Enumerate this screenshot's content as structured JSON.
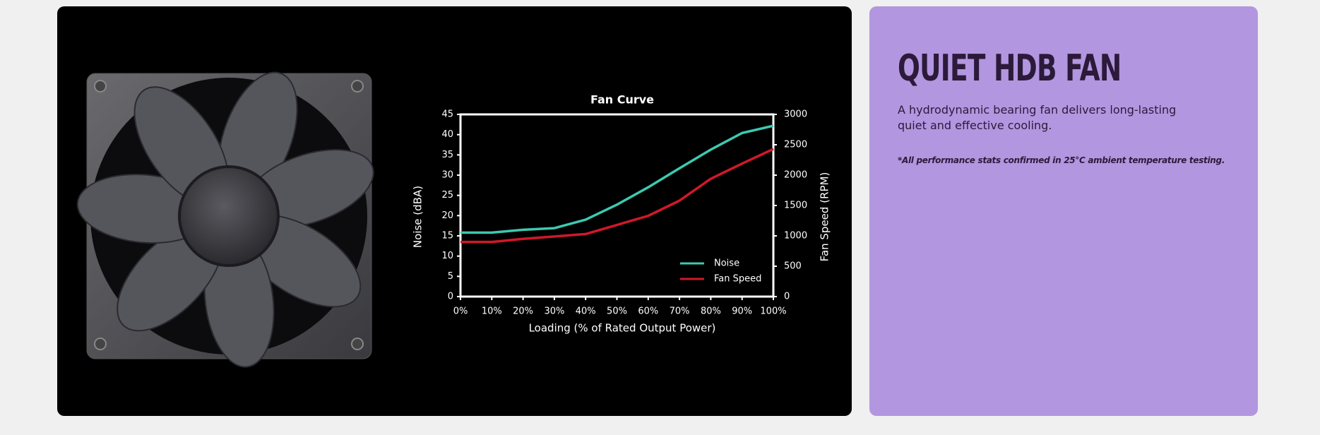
{
  "chart_data": {
    "type": "line",
    "title": "Fan Curve",
    "x_label": "Loading (% of Rated Output Power)",
    "y_label": "Noise (dBA)",
    "y2_label": "Fan Speed (RPM)",
    "x": [
      0,
      10,
      20,
      30,
      40,
      50,
      60,
      70,
      80,
      90,
      100
    ],
    "xlim": [
      0,
      100
    ],
    "xticks": [
      {
        "value": 0,
        "label": "0%"
      },
      {
        "value": 10,
        "label": "10%"
      },
      {
        "value": 20,
        "label": "20%"
      },
      {
        "value": 30,
        "label": "30%"
      },
      {
        "value": 40,
        "label": "40%"
      },
      {
        "value": 50,
        "label": "50%"
      },
      {
        "value": 60,
        "label": "60%"
      },
      {
        "value": 70,
        "label": "70%"
      },
      {
        "value": 80,
        "label": "80%"
      },
      {
        "value": 90,
        "label": "90%"
      },
      {
        "value": 100,
        "label": "100%"
      }
    ],
    "ylim": [
      0,
      45
    ],
    "yticks": [
      0,
      5,
      10,
      15,
      20,
      25,
      30,
      35,
      40,
      45
    ],
    "y2lim": [
      0,
      3000
    ],
    "y2ticks": [
      0,
      500,
      1000,
      1500,
      2000,
      2500,
      3000
    ],
    "series": [
      {
        "name": "Noise",
        "color": "#3cc9b0",
        "values": [
          15.8,
          15.8,
          16.5,
          16.9,
          19,
          22.7,
          27,
          31.7,
          36.3,
          40.4,
          42.2
        ]
      },
      {
        "name": "Fan Speed",
        "color": "#d0182a",
        "axis": "y2",
        "values": [
          900,
          900,
          950,
          990,
          1030,
          1180,
          1330,
          1580,
          1940,
          2190,
          2430
        ]
      }
    ],
    "legend": "lower right",
    "grid": false
  },
  "panel": {
    "title": "QUIET HDB FAN",
    "description": "A hydrodynamic bearing fan delivers long-lasting quiet and effective cooling.",
    "note": "*All performance stats confirmed in 25°C ambient temperature testing."
  }
}
